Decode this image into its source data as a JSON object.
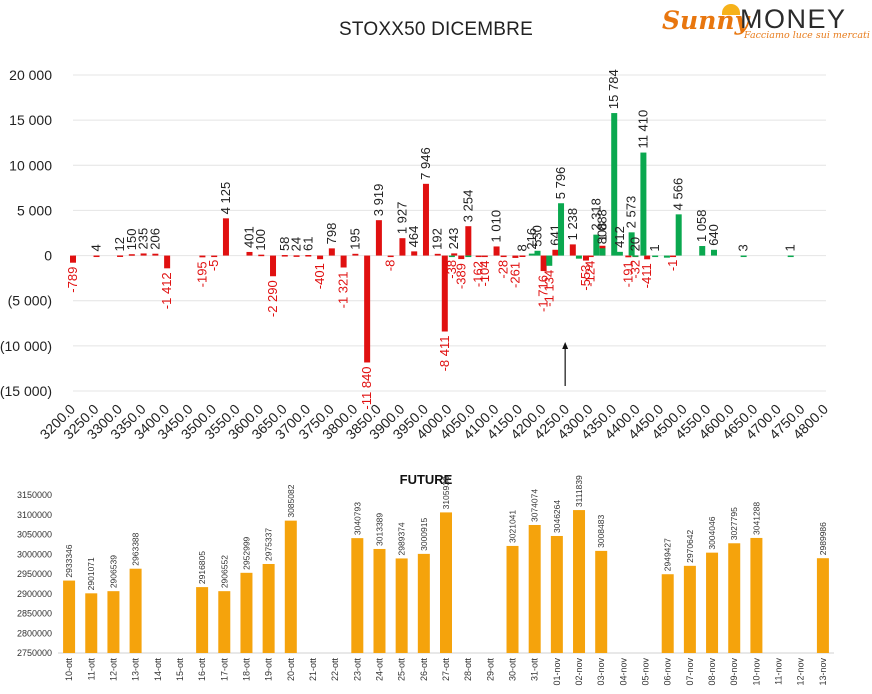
{
  "page": {
    "title": "STOXX50 DICEMBRE",
    "logo": {
      "script": "Sunny",
      "word": "MONEY",
      "tagline": "Facciamo luce sui mercati"
    }
  },
  "colors": {
    "put": "#e01010",
    "call": "#0aa84f",
    "future": "#f5a30c",
    "grid": "#e4e4e4"
  },
  "chart_data": [
    {
      "type": "bar",
      "title": "STOXX50 DICEMBRE",
      "x_tick_labels": [
        "3200.0",
        "3250.0",
        "3300.0",
        "3350.0",
        "3400.0",
        "3450.0",
        "3500.0",
        "3550.0",
        "3600.0",
        "3650.0",
        "3700.0",
        "3750.0",
        "3800.0",
        "3850.0",
        "3900.0",
        "3950.0",
        "4000.0",
        "4050.0",
        "4100.0",
        "4150.0",
        "4200.0",
        "4250.0",
        "4300.0",
        "4350.0",
        "4400.0",
        "4450.0",
        "4500.0",
        "4550.0",
        "4600.0",
        "4650.0",
        "4700.0",
        "4750.0",
        "4800.0"
      ],
      "y_ticks": [
        20000,
        15000,
        10000,
        5000,
        0,
        -5000,
        -10000,
        -15000
      ],
      "y_tick_labels": [
        "20 000",
        "15 000",
        "10 000",
        "5 000",
        "0",
        "(5 000)",
        "(10 000)",
        "(15 000)"
      ],
      "ylim": [
        -15000,
        20000
      ],
      "grid": true,
      "arrow_marker_x": 4250,
      "series": [
        {
          "color_key": "put",
          "points": [
            {
              "x": 3200,
              "y": -789,
              "label": "-789"
            },
            {
              "x": 3250,
              "y": 4,
              "label": "4"
            },
            {
              "x": 3300,
              "y": 12,
              "label": "12"
            },
            {
              "x": 3325,
              "y": 150,
              "label": "150"
            },
            {
              "x": 3350,
              "y": 235,
              "label": "235"
            },
            {
              "x": 3375,
              "y": 206,
              "label": "206"
            },
            {
              "x": 3400,
              "y": -1412,
              "label": "-1 412"
            },
            {
              "x": 3475,
              "y": -195,
              "label": "-195"
            },
            {
              "x": 3500,
              "y": -5,
              "label": "-5"
            },
            {
              "x": 3525,
              "y": 4125,
              "label": "4 125"
            },
            {
              "x": 3575,
              "y": 401,
              "label": "401"
            },
            {
              "x": 3600,
              "y": 100,
              "label": "100"
            },
            {
              "x": 3625,
              "y": -2290,
              "label": "-2 290"
            },
            {
              "x": 3650,
              "y": 58,
              "label": "58"
            },
            {
              "x": 3675,
              "y": 24,
              "label": "24"
            },
            {
              "x": 3700,
              "y": 61,
              "label": "61"
            },
            {
              "x": 3725,
              "y": -401,
              "label": "-401"
            },
            {
              "x": 3750,
              "y": 798,
              "label": "798"
            },
            {
              "x": 3775,
              "y": -1321,
              "label": "-1 321"
            },
            {
              "x": 3800,
              "y": 195,
              "label": "195"
            },
            {
              "x": 3825,
              "y": -11840,
              "label": "-11 840"
            },
            {
              "x": 3850,
              "y": 3919,
              "label": "3 919"
            },
            {
              "x": 3875,
              "y": -8,
              "label": "-8"
            },
            {
              "x": 3900,
              "y": 1927,
              "label": "1 927"
            },
            {
              "x": 3925,
              "y": 464,
              "label": "464"
            },
            {
              "x": 3950,
              "y": 7946,
              "label": "7 946"
            },
            {
              "x": 3975,
              "y": 192,
              "label": "192"
            },
            {
              "x": 3990,
              "y": -8411,
              "label": "-8 411"
            },
            {
              "x": 4010,
              "y": 243,
              "label": "243"
            },
            {
              "x": 4025,
              "y": -389,
              "label": "-389"
            },
            {
              "x": 4040,
              "y": 3254,
              "label": "3 254"
            },
            {
              "x": 4062,
              "y": -162,
              "label": "-162"
            },
            {
              "x": 4075,
              "y": -104,
              "label": "-104"
            },
            {
              "x": 4100,
              "y": 1010,
              "label": "1 010"
            },
            {
              "x": 4115,
              "y": -28,
              "label": "-28"
            },
            {
              "x": 4140,
              "y": -261,
              "label": "-261"
            },
            {
              "x": 4155,
              "y": 8,
              "label": "8"
            },
            {
              "x": 4200,
              "y": -1716,
              "label": "-1 716"
            },
            {
              "x": 4225,
              "y": 641,
              "label": "641"
            },
            {
              "x": 4262,
              "y": 1238,
              "label": "1 238"
            },
            {
              "x": 4290,
              "y": -553,
              "label": "-553"
            },
            {
              "x": 4300,
              "y": -124,
              "label": "-124"
            },
            {
              "x": 4325,
              "y": 1088,
              "label": "1 088"
            },
            {
              "x": 4380,
              "y": -191,
              "label": "-191"
            },
            {
              "x": 4395,
              "y": -32,
              "label": "-32"
            },
            {
              "x": 4420,
              "y": -411,
              "label": "-411"
            },
            {
              "x": 4475,
              "y": -1,
              "label": "-1"
            }
          ]
        },
        {
          "color_key": "call",
          "points": [
            {
              "x": 4005,
              "y": -38,
              "label": "-38"
            },
            {
              "x": 4040,
              "y": -89,
              "label": ""
            },
            {
              "x": 4175,
              "y": 216,
              "label": "216"
            },
            {
              "x": 4187,
              "y": 530,
              "label": "530"
            },
            {
              "x": 4212,
              "y": -1134,
              "label": "-1 134"
            },
            {
              "x": 4237,
              "y": 5796,
              "label": "5 796"
            },
            {
              "x": 4275,
              "y": -343,
              "label": ""
            },
            {
              "x": 4312,
              "y": 2318,
              "label": "2 318"
            },
            {
              "x": 4325,
              "y": 808,
              "label": "808"
            },
            {
              "x": 4350,
              "y": 15784,
              "label": "15 784"
            },
            {
              "x": 4362,
              "y": 412,
              "label": "412"
            },
            {
              "x": 4387,
              "y": 2573,
              "label": "2 573"
            },
            {
              "x": 4395,
              "y": 20,
              "label": "20"
            },
            {
              "x": 4412,
              "y": 11410,
              "label": "11 410"
            },
            {
              "x": 4437,
              "y": 1,
              "label": "1"
            },
            {
              "x": 4462,
              "y": -232,
              "label": ""
            },
            {
              "x": 4487,
              "y": 4566,
              "label": "4 566"
            },
            {
              "x": 4537,
              "y": 1058,
              "label": "1 058"
            },
            {
              "x": 4562,
              "y": 640,
              "label": "640"
            },
            {
              "x": 4625,
              "y": 3,
              "label": "3"
            },
            {
              "x": 4725,
              "y": 1,
              "label": "1"
            }
          ]
        }
      ]
    },
    {
      "type": "bar",
      "title": "FUTURE",
      "ylim": [
        2750000,
        3150000
      ],
      "y_ticks": [
        3150000,
        3100000,
        3050000,
        3000000,
        2950000,
        2900000,
        2850000,
        2800000,
        2750000
      ],
      "categories": [
        "10-ott",
        "11-ott",
        "12-ott",
        "13-ott",
        "14-ott",
        "15-ott",
        "16-ott",
        "17-ott",
        "18-ott",
        "19-ott",
        "20-ott",
        "21-ott",
        "22-ott",
        "23-ott",
        "24-ott",
        "25-ott",
        "26-ott",
        "27-ott",
        "28-ott",
        "29-ott",
        "30-ott",
        "31-ott",
        "01-nov",
        "02-nov",
        "03-nov",
        "04-nov",
        "05-nov",
        "06-nov",
        "07-nov",
        "08-nov",
        "09-nov",
        "10-nov",
        "11-nov",
        "12-nov",
        "13-nov"
      ],
      "values": [
        2933346,
        2901071,
        2906539,
        2963388,
        null,
        null,
        2916805,
        2906552,
        2952999,
        2975337,
        3085082,
        null,
        null,
        3040793,
        3013389,
        2989374,
        3000915,
        3105938,
        null,
        null,
        3021041,
        3074074,
        3046264,
        3111839,
        3008483,
        null,
        null,
        2949427,
        2970642,
        3004046,
        3027795,
        3041288,
        null,
        null,
        2989986
      ],
      "value_labels": [
        "2933346",
        "2901071",
        "2906539",
        "2963388",
        "",
        "",
        "2916805",
        "2906552",
        "2952999",
        "2975337",
        "3085082",
        "",
        "",
        "3040793",
        "3013389",
        "2989374",
        "3000915",
        "3105938",
        "",
        "",
        "3021041",
        "3074074",
        "3046264",
        "3111839",
        "3008483",
        "",
        "",
        "2949427",
        "2970642",
        "3004046",
        "3027795",
        "3041288",
        "",
        "",
        "2989986"
      ]
    }
  ]
}
